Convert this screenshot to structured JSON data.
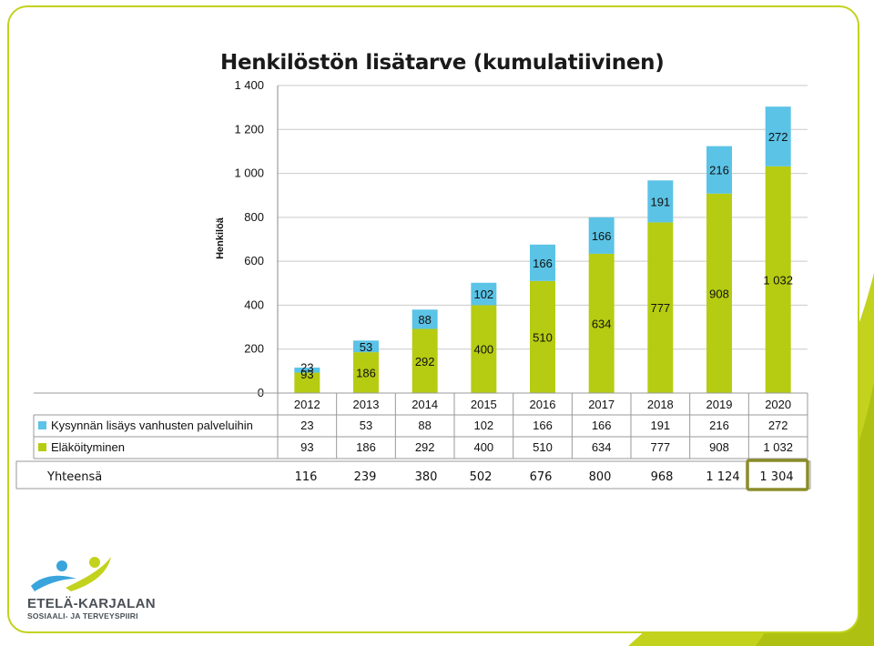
{
  "colors": {
    "frame": "#c2d21d",
    "decor": "#c2d21d",
    "series_retirement": "#b6cc12",
    "series_demand": "#5bc3e6",
    "highlight_box": "#8a8d2a",
    "logo_blue": "#3aa4dc",
    "logo_green": "#c2d21d"
  },
  "logo": {
    "name": "ETELÄ-KARJALAN",
    "subtitle": "SOSIAALI- JA TERVEYSPIIRI",
    "icon": "people-swoosh-icon"
  },
  "chart_data": {
    "type": "bar",
    "stacked": true,
    "title": "Henkilöstön lisätarve (kumulatiivinen)",
    "ylabel": "Henkilöä",
    "xlabel": "",
    "ylim": [
      0,
      1400
    ],
    "yticks": [
      "0",
      "200",
      "400",
      "600",
      "800",
      "1 000",
      "1 200",
      "1 400"
    ],
    "ytick_values": [
      0,
      200,
      400,
      600,
      800,
      1000,
      1200,
      1400
    ],
    "grid": true,
    "legend": "table-below",
    "categories": [
      "2012",
      "2013",
      "2014",
      "2015",
      "2016",
      "2017",
      "2018",
      "2019",
      "2020"
    ],
    "series": [
      {
        "name": "Eläköityminen",
        "color": "#b6cc12",
        "values": [
          93,
          186,
          292,
          400,
          510,
          634,
          777,
          908,
          1032
        ],
        "labels": [
          "93",
          "186",
          "292",
          "400",
          "510",
          "634",
          "777",
          "908",
          "1 032"
        ]
      },
      {
        "name": "Kysynnän lisäys vanhusten palveluihin",
        "color": "#5bc3e6",
        "values": [
          23,
          53,
          88,
          102,
          166,
          166,
          191,
          216,
          272
        ],
        "labels": [
          "23",
          "53",
          "88",
          "102",
          "166",
          "166",
          "191",
          "216",
          "272"
        ]
      }
    ],
    "totals_label": "Yhteensä",
    "totals": [
      116,
      239,
      380,
      502,
      676,
      800,
      968,
      1124,
      1304
    ],
    "totals_labels": [
      "116",
      "239",
      "380",
      "502",
      "676",
      "800",
      "968",
      "1 124",
      "1 304"
    ],
    "highlighted_total": "1 304"
  }
}
